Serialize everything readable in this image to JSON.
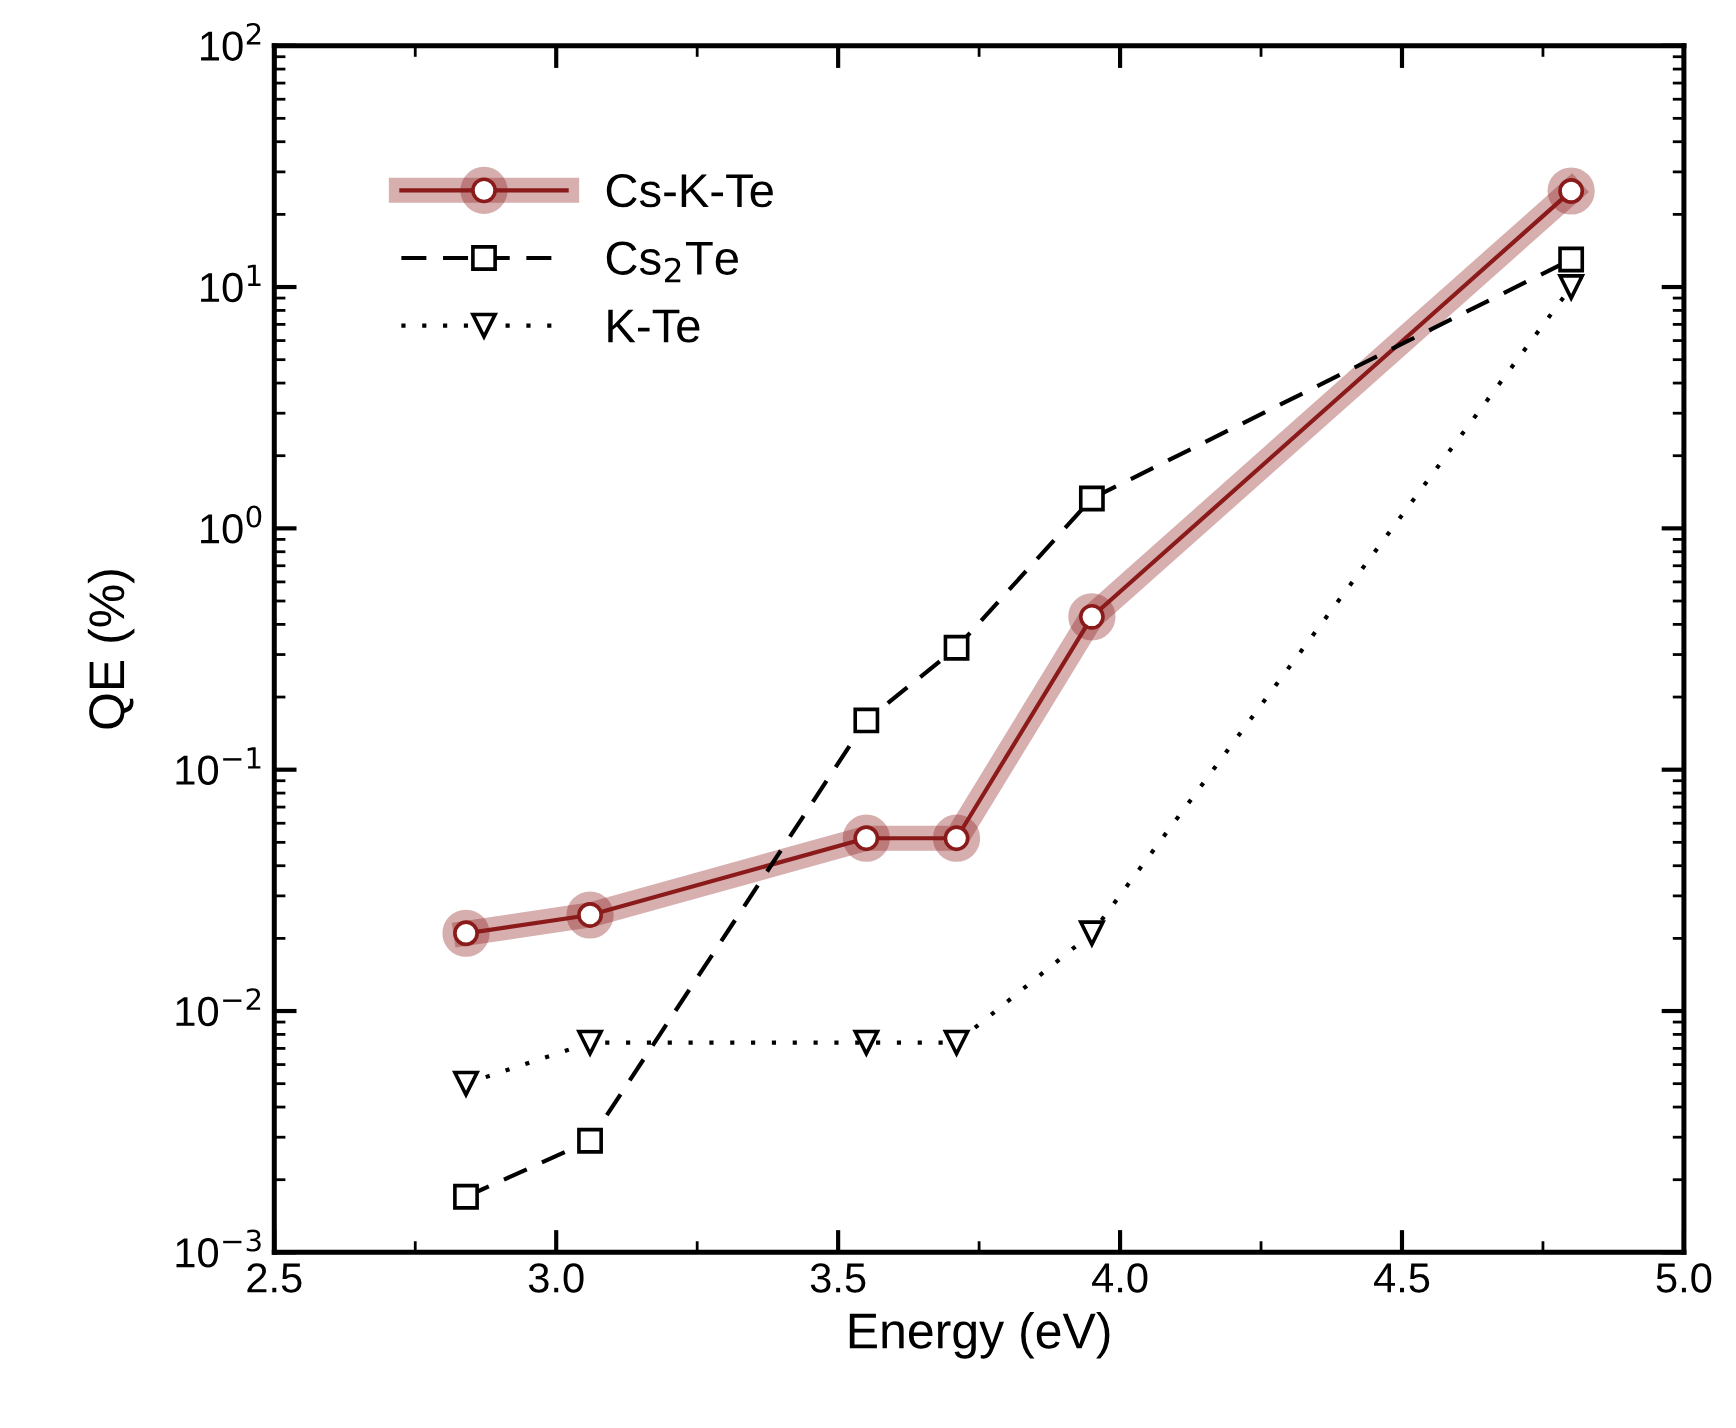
{
  "chart_data": {
    "type": "line",
    "xlabel": "Energy (eV)",
    "ylabel": "QE (%)",
    "log": "y",
    "xlim": [
      2.5,
      5.0
    ],
    "xticks": [
      2.5,
      {
        "value": 3,
        "label": "3.0"
      },
      3.5,
      {
        "value": 4,
        "label": "4.0"
      },
      4.5,
      {
        "value": 5,
        "label": "5.0"
      }
    ],
    "ylim": [
      0.001,
      100
    ],
    "yticks": [
      {
        "value": 0.001,
        "label": "10$^{−3}$"
      },
      {
        "value": 0.01,
        "label": "10$^{−2}$"
      },
      {
        "value": 0.1,
        "label": "10$^{−1}$"
      },
      {
        "value": 1,
        "label": "10$^{0}$"
      },
      {
        "value": 10,
        "label": "10$^{1}$"
      },
      {
        "value": 100,
        "label": "10$^{2}$"
      }
    ],
    "grid": false,
    "legend": "top left",
    "series": [
      {
        "name": "Cs-K-Te",
        "color": "#8b1a1a",
        "marker": "circle",
        "line_style": "solid",
        "x": [
          2.84,
          3.06,
          3.55,
          3.71,
          3.95,
          4.8
        ],
        "values": [
          0.021,
          0.025,
          0.052,
          0.052,
          0.43,
          25
        ]
      },
      {
        "name": "Cs$_{2}$Te",
        "color": "#000000",
        "marker": "square",
        "line_style": "dashed",
        "x": [
          2.84,
          3.06,
          3.55,
          3.71,
          3.95,
          4.8
        ],
        "values": [
          0.0017,
          0.0029,
          0.16,
          0.32,
          1.33,
          13
        ]
      },
      {
        "name": "K-Te",
        "color": "#000000",
        "marker": "triangle",
        "line_style": "dotted",
        "x": [
          2.84,
          3.06,
          3.55,
          3.71,
          3.95,
          4.8
        ],
        "values": [
          0.005,
          0.0074,
          0.0074,
          0.0074,
          0.021,
          10
        ]
      }
    ]
  }
}
